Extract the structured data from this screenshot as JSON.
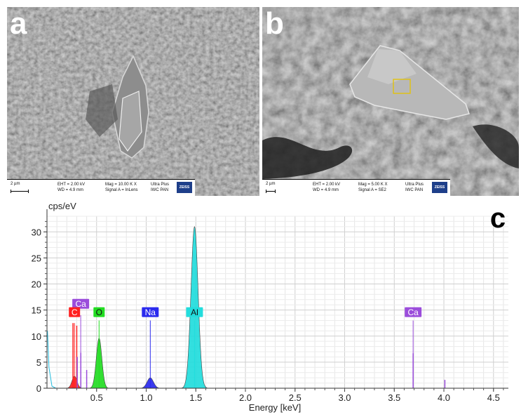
{
  "panels": [
    {
      "letter": "a",
      "scale_label": "2 µm",
      "eht": "EHT = 2.00 kV",
      "wd": "WD = 4.9 mm",
      "mag": "Mag = 10.00 K X",
      "signal": "Signal A = InLens",
      "instrument": "Ultra Plus",
      "lab": "IWC PAN",
      "logo": "ZEISS"
    },
    {
      "letter": "b",
      "scale_label": "2 µm",
      "eht": "EHT = 2.00 kV",
      "wd": "WD = 4.9 mm",
      "mag": "Mag = 5.00 K X",
      "signal": "Signal A = SE2",
      "instrument": "Ultra Plus",
      "lab": "IWC PAN",
      "logo": "ZEISS"
    }
  ],
  "chart_data": {
    "type": "area",
    "panel_letter": "c",
    "ylabel": "cps/eV",
    "xlabel": "Energy [keV]",
    "xlim": [
      0,
      4.65
    ],
    "ylim": [
      0,
      33
    ],
    "x_ticks": [
      "0.5",
      "1.0",
      "1.5",
      "2.0",
      "2.5",
      "3.0",
      "3.5",
      "4.0",
      "4.5"
    ],
    "y_ticks": [
      "0",
      "5",
      "10",
      "15",
      "20",
      "25",
      "30"
    ],
    "grid": true,
    "series": [
      {
        "name": "C",
        "color": "#ff2020",
        "peak_x": 0.277,
        "peak_y": 2.3,
        "sigma": 0.025
      },
      {
        "name": "O",
        "color": "#22dd22",
        "peak_x": 0.525,
        "peak_y": 9.6,
        "sigma": 0.028
      },
      {
        "name": "Na",
        "color": "#2a2aee",
        "peak_x": 1.041,
        "peak_y": 2.0,
        "sigma": 0.032
      },
      {
        "name": "Al",
        "color": "#22dddd",
        "peak_x": 1.487,
        "peak_y": 31.0,
        "sigma": 0.036
      }
    ],
    "element_labels": [
      {
        "text": "Ca",
        "x": 0.34,
        "y": 16.2,
        "color": "#9b4ddb",
        "line_top": 14.0
      },
      {
        "text": "C",
        "x": 0.277,
        "y": 14.6,
        "color": "#ff2020",
        "line_top": 12.5
      },
      {
        "text": "O",
        "x": 0.525,
        "y": 14.6,
        "color": "#22dd22",
        "line_top": 13.0
      },
      {
        "text": "Na",
        "x": 1.041,
        "y": 14.6,
        "color": "#2a2aee",
        "line_top": 13.0
      },
      {
        "text": "Al",
        "x": 1.487,
        "y": 14.6,
        "color": "#22dddd",
        "line_top": 13.0
      },
      {
        "text": "Ca",
        "x": 3.69,
        "y": 14.6,
        "color": "#9b4ddb",
        "line_top": 13.0
      }
    ],
    "marker_lines": [
      {
        "x": 0.262,
        "top": 12.5,
        "color": "#ff2020"
      },
      {
        "x": 0.3,
        "top": 12.0,
        "color": "#ff2020"
      },
      {
        "x": 0.305,
        "top": 6.0,
        "color": "#9b4ddb"
      },
      {
        "x": 0.341,
        "top": 6.8,
        "color": "#9b4ddb"
      },
      {
        "x": 0.4,
        "top": 3.5,
        "color": "#9b4ddb"
      },
      {
        "x": 3.69,
        "top": 6.7,
        "color": "#9b4ddb"
      },
      {
        "x": 4.01,
        "top": 1.6,
        "color": "#9b4ddb"
      }
    ]
  }
}
